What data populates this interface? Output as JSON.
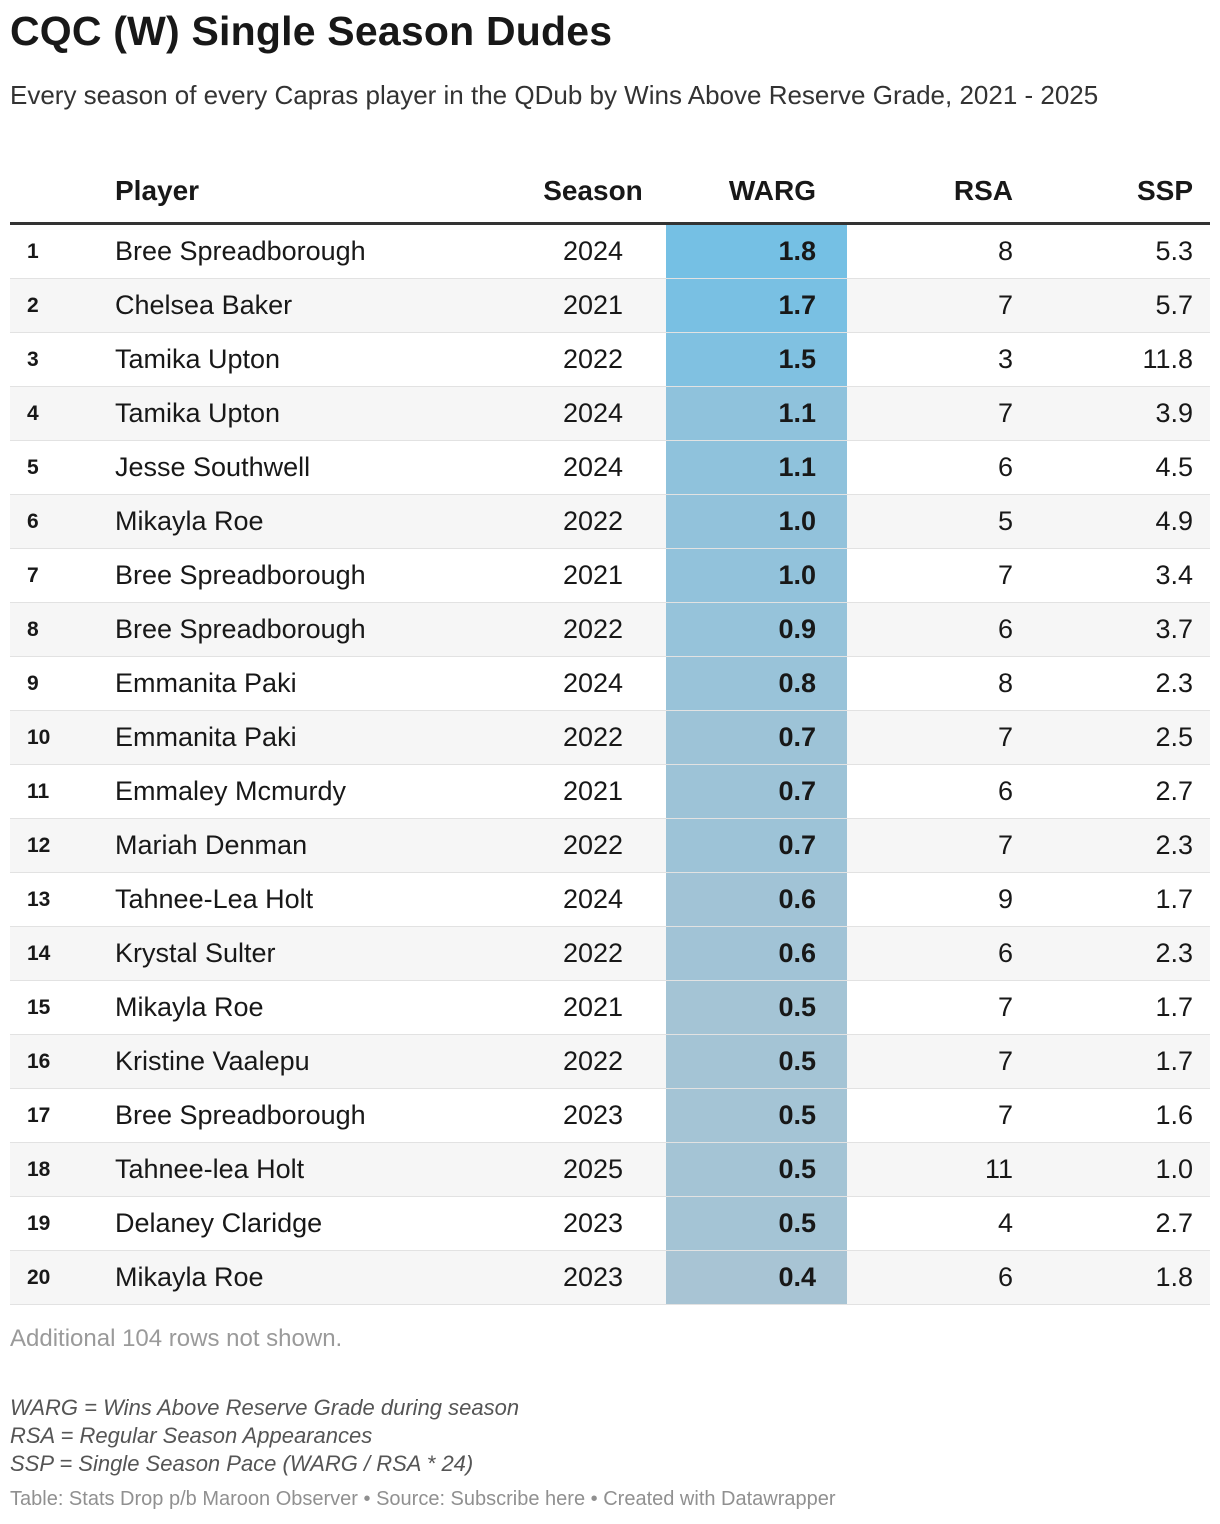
{
  "title": "CQC (W) Single Season Dudes",
  "subtitle": "Every season of every Capras player in the QDub by Wins Above Reserve Grade, 2021 - 2025",
  "chart_data": {
    "type": "table",
    "columns": [
      "",
      "Player",
      "Season",
      "WARG",
      "RSA",
      "SSP"
    ],
    "rows": [
      {
        "rank": "1",
        "player": "Bree Spreadborough",
        "season": "2024",
        "warg": 1.8,
        "rsa": "8",
        "ssp": "5.3"
      },
      {
        "rank": "2",
        "player": "Chelsea Baker",
        "season": "2021",
        "warg": 1.7,
        "rsa": "7",
        "ssp": "5.7"
      },
      {
        "rank": "3",
        "player": "Tamika Upton",
        "season": "2022",
        "warg": 1.5,
        "rsa": "3",
        "ssp": "11.8"
      },
      {
        "rank": "4",
        "player": "Tamika Upton",
        "season": "2024",
        "warg": 1.1,
        "rsa": "7",
        "ssp": "3.9"
      },
      {
        "rank": "5",
        "player": "Jesse Southwell",
        "season": "2024",
        "warg": 1.1,
        "rsa": "6",
        "ssp": "4.5"
      },
      {
        "rank": "6",
        "player": "Mikayla Roe",
        "season": "2022",
        "warg": 1.0,
        "rsa": "5",
        "ssp": "4.9"
      },
      {
        "rank": "7",
        "player": "Bree Spreadborough",
        "season": "2021",
        "warg": 1.0,
        "rsa": "7",
        "ssp": "3.4"
      },
      {
        "rank": "8",
        "player": "Bree Spreadborough",
        "season": "2022",
        "warg": 0.9,
        "rsa": "6",
        "ssp": "3.7"
      },
      {
        "rank": "9",
        "player": "Emmanita Paki",
        "season": "2024",
        "warg": 0.8,
        "rsa": "8",
        "ssp": "2.3"
      },
      {
        "rank": "10",
        "player": "Emmanita Paki",
        "season": "2022",
        "warg": 0.7,
        "rsa": "7",
        "ssp": "2.5"
      },
      {
        "rank": "11",
        "player": "Emmaley Mcmurdy",
        "season": "2021",
        "warg": 0.7,
        "rsa": "6",
        "ssp": "2.7"
      },
      {
        "rank": "12",
        "player": "Mariah Denman",
        "season": "2022",
        "warg": 0.7,
        "rsa": "7",
        "ssp": "2.3"
      },
      {
        "rank": "13",
        "player": "Tahnee-Lea Holt",
        "season": "2024",
        "warg": 0.6,
        "rsa": "9",
        "ssp": "1.7"
      },
      {
        "rank": "14",
        "player": "Krystal Sulter",
        "season": "2022",
        "warg": 0.6,
        "rsa": "6",
        "ssp": "2.3"
      },
      {
        "rank": "15",
        "player": "Mikayla Roe",
        "season": "2021",
        "warg": 0.5,
        "rsa": "7",
        "ssp": "1.7"
      },
      {
        "rank": "16",
        "player": "Kristine Vaalepu",
        "season": "2022",
        "warg": 0.5,
        "rsa": "7",
        "ssp": "1.7"
      },
      {
        "rank": "17",
        "player": "Bree Spreadborough",
        "season": "2023",
        "warg": 0.5,
        "rsa": "7",
        "ssp": "1.6"
      },
      {
        "rank": "18",
        "player": "Tahnee-lea Holt",
        "season": "2025",
        "warg": 0.5,
        "rsa": "11",
        "ssp": "1.0"
      },
      {
        "rank": "19",
        "player": "Delaney Claridge",
        "season": "2023",
        "warg": 0.5,
        "rsa": "4",
        "ssp": "2.7"
      },
      {
        "rank": "20",
        "player": "Mikayla Roe",
        "season": "2023",
        "warg": 0.4,
        "rsa": "6",
        "ssp": "1.8"
      }
    ],
    "heatmap_column": "WARG",
    "heatmap_colors": {
      "high": "#75c0e4",
      "low": "#a8c4d4"
    }
  },
  "note": "Additional 104 rows not shown.",
  "legend": [
    "WARG = Wins Above Reserve Grade during season",
    "RSA = Regular Season Appearances",
    "SSP = Single Season Pace (WARG / RSA * 24)"
  ],
  "footer": {
    "table_credit": "Table: Stats Drop p/b Maroon Observer",
    "source": "Source: Subscribe here",
    "created": "Created with Datawrapper",
    "separator": " • "
  }
}
